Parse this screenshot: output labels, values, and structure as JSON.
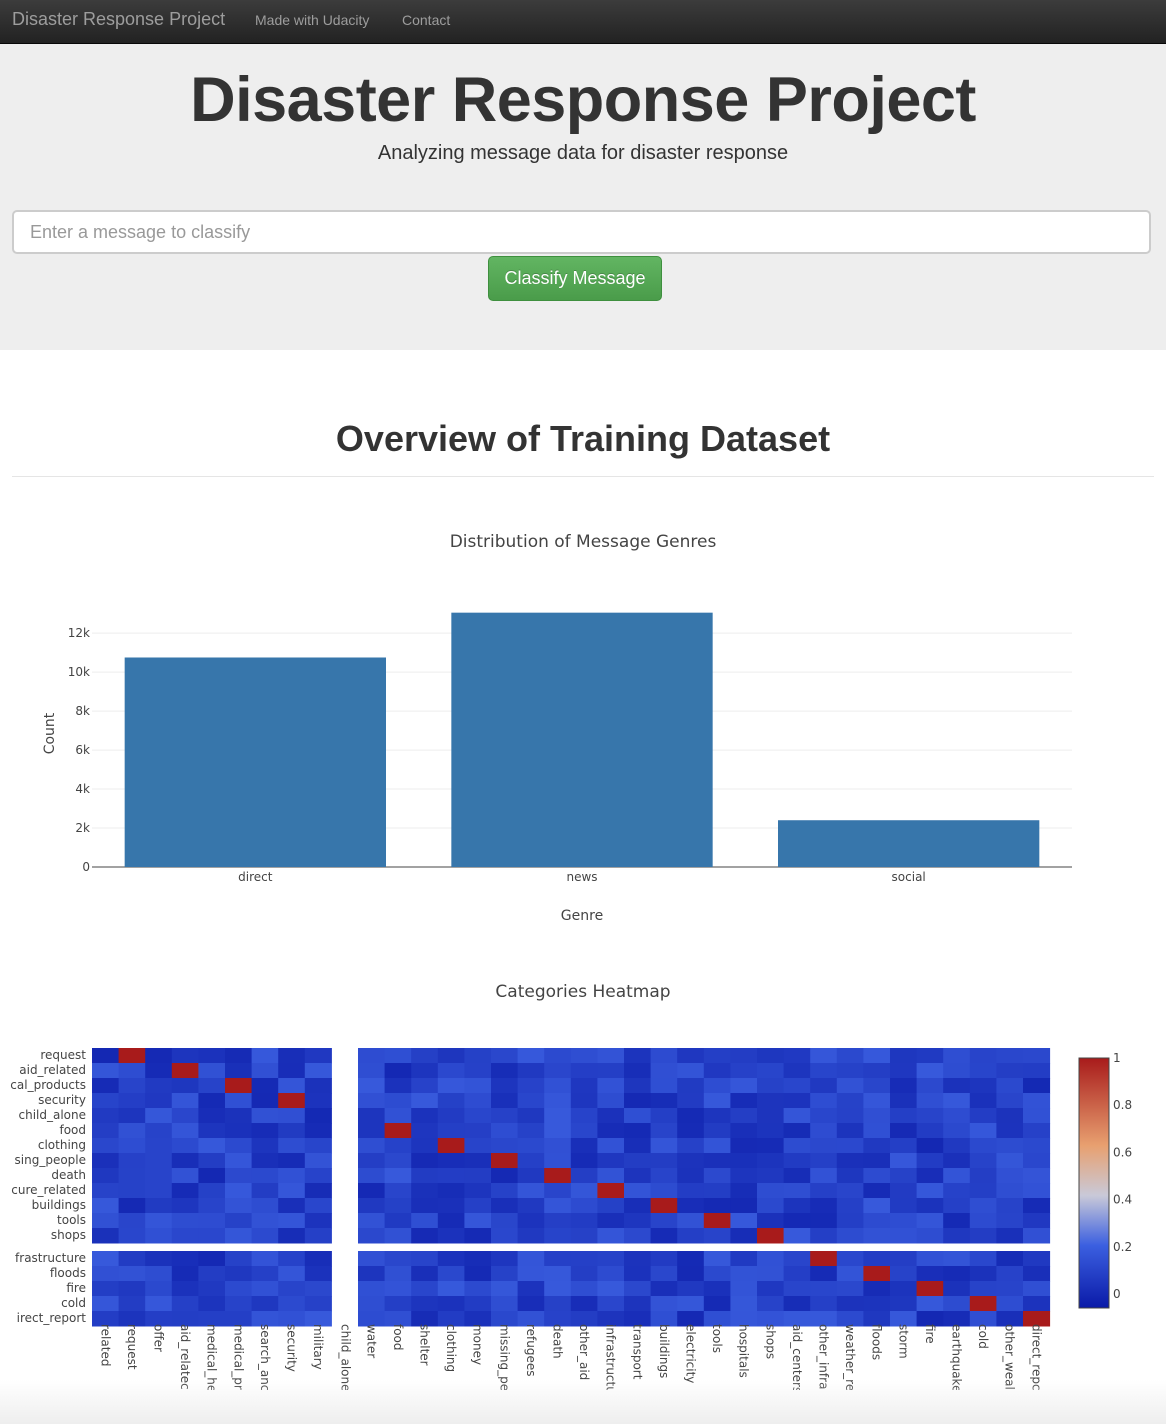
{
  "navbar": {
    "brand": "Disaster Response Project",
    "links": [
      "Made with Udacity",
      "Contact"
    ]
  },
  "header": {
    "title": "Disaster Response Project",
    "subtitle": "Analyzing message data for disaster response"
  },
  "form": {
    "placeholder": "Enter a message to classify",
    "button_label": "Classify Message"
  },
  "overview": {
    "title": "Overview of Training Dataset"
  },
  "colors": {
    "bar": "#3776ab",
    "button": "#5cb85c",
    "navbar": "#222222",
    "jumbotron": "#eeeeee",
    "heat_low": "#0a1aa8",
    "heat_mid": "#d6cfcb",
    "heat_high": "#a81b1b"
  },
  "chart_data": [
    {
      "type": "bar",
      "title": "Distribution of Message Genres",
      "xlabel": "Genre",
      "ylabel": "Count",
      "categories": [
        "direct",
        "news",
        "social"
      ],
      "values": [
        10750,
        13050,
        2400
      ],
      "ylim": [
        0,
        13700
      ],
      "yticks": [
        0,
        2000,
        4000,
        6000,
        8000,
        10000,
        12000
      ],
      "ytick_labels": [
        "0",
        "2k",
        "4k",
        "6k",
        "8k",
        "10k",
        "12k"
      ],
      "grid": true
    },
    {
      "type": "heatmap",
      "title": "Categories Heatmap",
      "x_labels": [
        "related",
        "request",
        "offer",
        "aid_related",
        "medical_help",
        "medical_products",
        "search_and_rescue",
        "security",
        "military",
        "child_alone",
        "water",
        "food",
        "shelter",
        "clothing",
        "money",
        "missing_people",
        "refugees",
        "death",
        "other_aid",
        "infrastructure_related",
        "transport",
        "buildings",
        "electricity",
        "tools",
        "hospitals",
        "shops",
        "aid_centers",
        "other_infrastructure",
        "weather_related",
        "floods",
        "storm",
        "fire",
        "earthquake",
        "cold",
        "other_weather",
        "direct_report"
      ],
      "x_labels_display": [
        "related",
        "request",
        "offer",
        "aid_relatec",
        "medical_he",
        "medical_pr",
        "search_anc",
        "security",
        "military",
        "child_alone",
        "water",
        "food",
        "shelter",
        "clothing",
        "money",
        "missing_pe",
        "refugees",
        "death",
        "other_aid",
        "infrastructu",
        "transport",
        "buildings",
        "electricity",
        "tools",
        "hospitals",
        "shops",
        "aid_centers",
        "other_infra",
        "weather_re",
        "floods",
        "storm",
        "fire",
        "earthquake",
        "cold",
        "other_weal",
        "direct_repc"
      ],
      "y_labels": [
        "request",
        "aid_related",
        "medical_products",
        "security",
        "child_alone",
        "food",
        "clothing",
        "missing_people",
        "death",
        "infrastructure_related",
        "buildings",
        "tools",
        "shops",
        "other_infrastructure",
        "floods",
        "fire",
        "cold",
        "direct_report"
      ],
      "y_labels_display": [
        "request",
        "aid_related",
        "cal_products",
        "security",
        "child_alone",
        "food",
        "clothing",
        "sing_people",
        "death",
        "cure_related",
        "buildings",
        "tools",
        "shops",
        "frastructure",
        "floods",
        "fire",
        "cold",
        "irect_report"
      ],
      "colorbar": {
        "range": [
          0,
          1
        ],
        "ticks": [
          "1",
          "0.8",
          "0.6",
          "0.4",
          "0.2",
          "0"
        ]
      }
    }
  ]
}
